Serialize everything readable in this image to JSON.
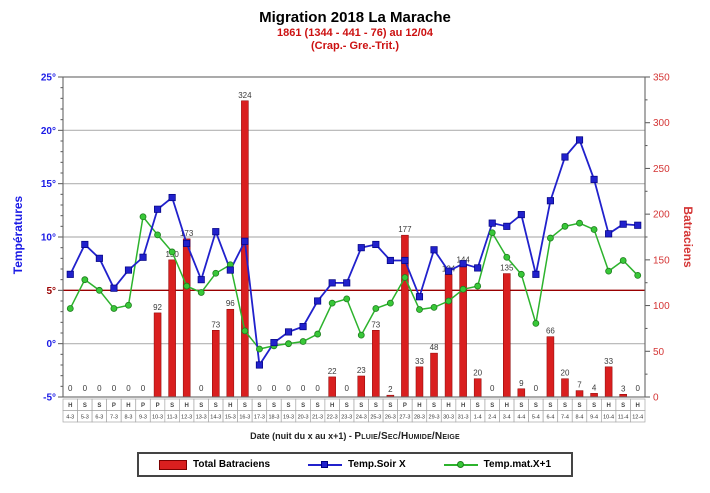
{
  "header": {
    "title": "Migration 2018 La Marache",
    "subtitle_total": "1861 (1344 - 441 - 76) au 12/04",
    "subtitle_species": "(Crap.- Gre.-Trit.)"
  },
  "x_axis_title": {
    "prefix": "Date (nuit du x au x+1) - ",
    "weather_key": "Pluie/Sec/Humide/Neige"
  },
  "legend": {
    "bars_label": "Total Batraciens",
    "line1_label": "Temp.Soir X",
    "line2_label": "Temp.mat.X+1"
  },
  "chart_data": {
    "type": "bar+line composite",
    "categories": [
      "4-3",
      "5-3",
      "6-3",
      "7-3",
      "8-3",
      "9-3",
      "10-3",
      "11-3",
      "12-3",
      "13-3",
      "14-3",
      "15-3",
      "16-3",
      "17-3",
      "18-3",
      "19-3",
      "20-3",
      "21-3",
      "22-3",
      "23-3",
      "24-3",
      "25-3",
      "26-3",
      "27-3",
      "28-3",
      "29-3",
      "30-3",
      "31-3",
      "1-4",
      "2-4",
      "3-4",
      "4-4",
      "5-4",
      "6-4",
      "7-4",
      "8-4",
      "9-4",
      "10-4",
      "11-4",
      "12-4"
    ],
    "weather_row": [
      "H",
      "S",
      "S",
      "P",
      "H",
      "P",
      "P",
      "S",
      "H",
      "S",
      "S",
      "H",
      "S",
      "S",
      "S",
      "S",
      "S",
      "S",
      "H",
      "S",
      "S",
      "S",
      "S",
      "P",
      "H",
      "S",
      "H",
      "H",
      "S",
      "S",
      "H",
      "S",
      "S",
      "S",
      "S",
      "S",
      "S",
      "H",
      "S",
      "H"
    ],
    "series": [
      {
        "name": "Total Batraciens",
        "type": "bar",
        "axis": "right",
        "color": "#d91f1f",
        "edge": "#8b0000",
        "values": [
          0,
          0,
          0,
          0,
          0,
          0,
          92,
          150,
          173,
          0,
          73,
          96,
          324,
          0,
          0,
          0,
          0,
          0,
          22,
          0,
          23,
          73,
          2,
          177,
          33,
          48,
          134,
          144,
          20,
          0,
          135,
          9,
          0,
          66,
          20,
          7,
          4,
          33,
          3,
          0
        ]
      },
      {
        "name": "Temp.Soir X",
        "type": "line",
        "axis": "left",
        "color": "#2121cc",
        "marker": "square",
        "marker_edge": "#000080",
        "values": [
          6.5,
          9.3,
          8.0,
          5.2,
          6.9,
          8.1,
          12.6,
          13.7,
          9.4,
          6.0,
          10.5,
          6.9,
          9.6,
          -2.0,
          0.1,
          1.1,
          1.6,
          4.0,
          5.7,
          5.7,
          9.0,
          9.3,
          7.8,
          7.8,
          4.4,
          8.8,
          6.8,
          7.5,
          7.1,
          11.3,
          11.0,
          12.1,
          6.5,
          13.4,
          17.5,
          19.1,
          15.4,
          10.3,
          11.2,
          11.1
        ]
      },
      {
        "name": "Temp.mat.X+1",
        "type": "line",
        "axis": "left",
        "color": "#2db32d",
        "marker": "circle",
        "marker_fill": "#38c838",
        "marker_edge": "#1e7d1e",
        "values": [
          3.3,
          6.0,
          5.0,
          3.3,
          3.6,
          11.9,
          10.2,
          8.6,
          5.4,
          4.8,
          6.6,
          7.4,
          1.2,
          -0.5,
          -0.2,
          0.0,
          0.2,
          0.9,
          3.8,
          4.2,
          0.8,
          3.3,
          3.8,
          6.2,
          3.2,
          3.4,
          4.0,
          5.1,
          5.4,
          10.4,
          8.1,
          6.5,
          1.9,
          9.9,
          11.0,
          11.3,
          10.7,
          6.8,
          7.8,
          6.4
        ]
      }
    ],
    "left_axis": {
      "label": "Températures",
      "unit": "°",
      "ticks": [
        25,
        20,
        15,
        10,
        5,
        0,
        -5
      ],
      "range": [
        -5,
        25
      ],
      "color": "#1a1ae6"
    },
    "right_axis": {
      "label": "Batraciens",
      "ticks": [
        350,
        300,
        250,
        200,
        150,
        100,
        50,
        0
      ],
      "range": [
        0,
        350
      ],
      "color": "#d43535"
    },
    "reference_line": {
      "value": 5,
      "color": "#990000"
    },
    "gridlines": [
      20,
      15,
      10,
      0
    ],
    "grid_color": "#b3b3b3",
    "bar_label_color": "#3a3a3a",
    "legend_position": "bottom"
  }
}
